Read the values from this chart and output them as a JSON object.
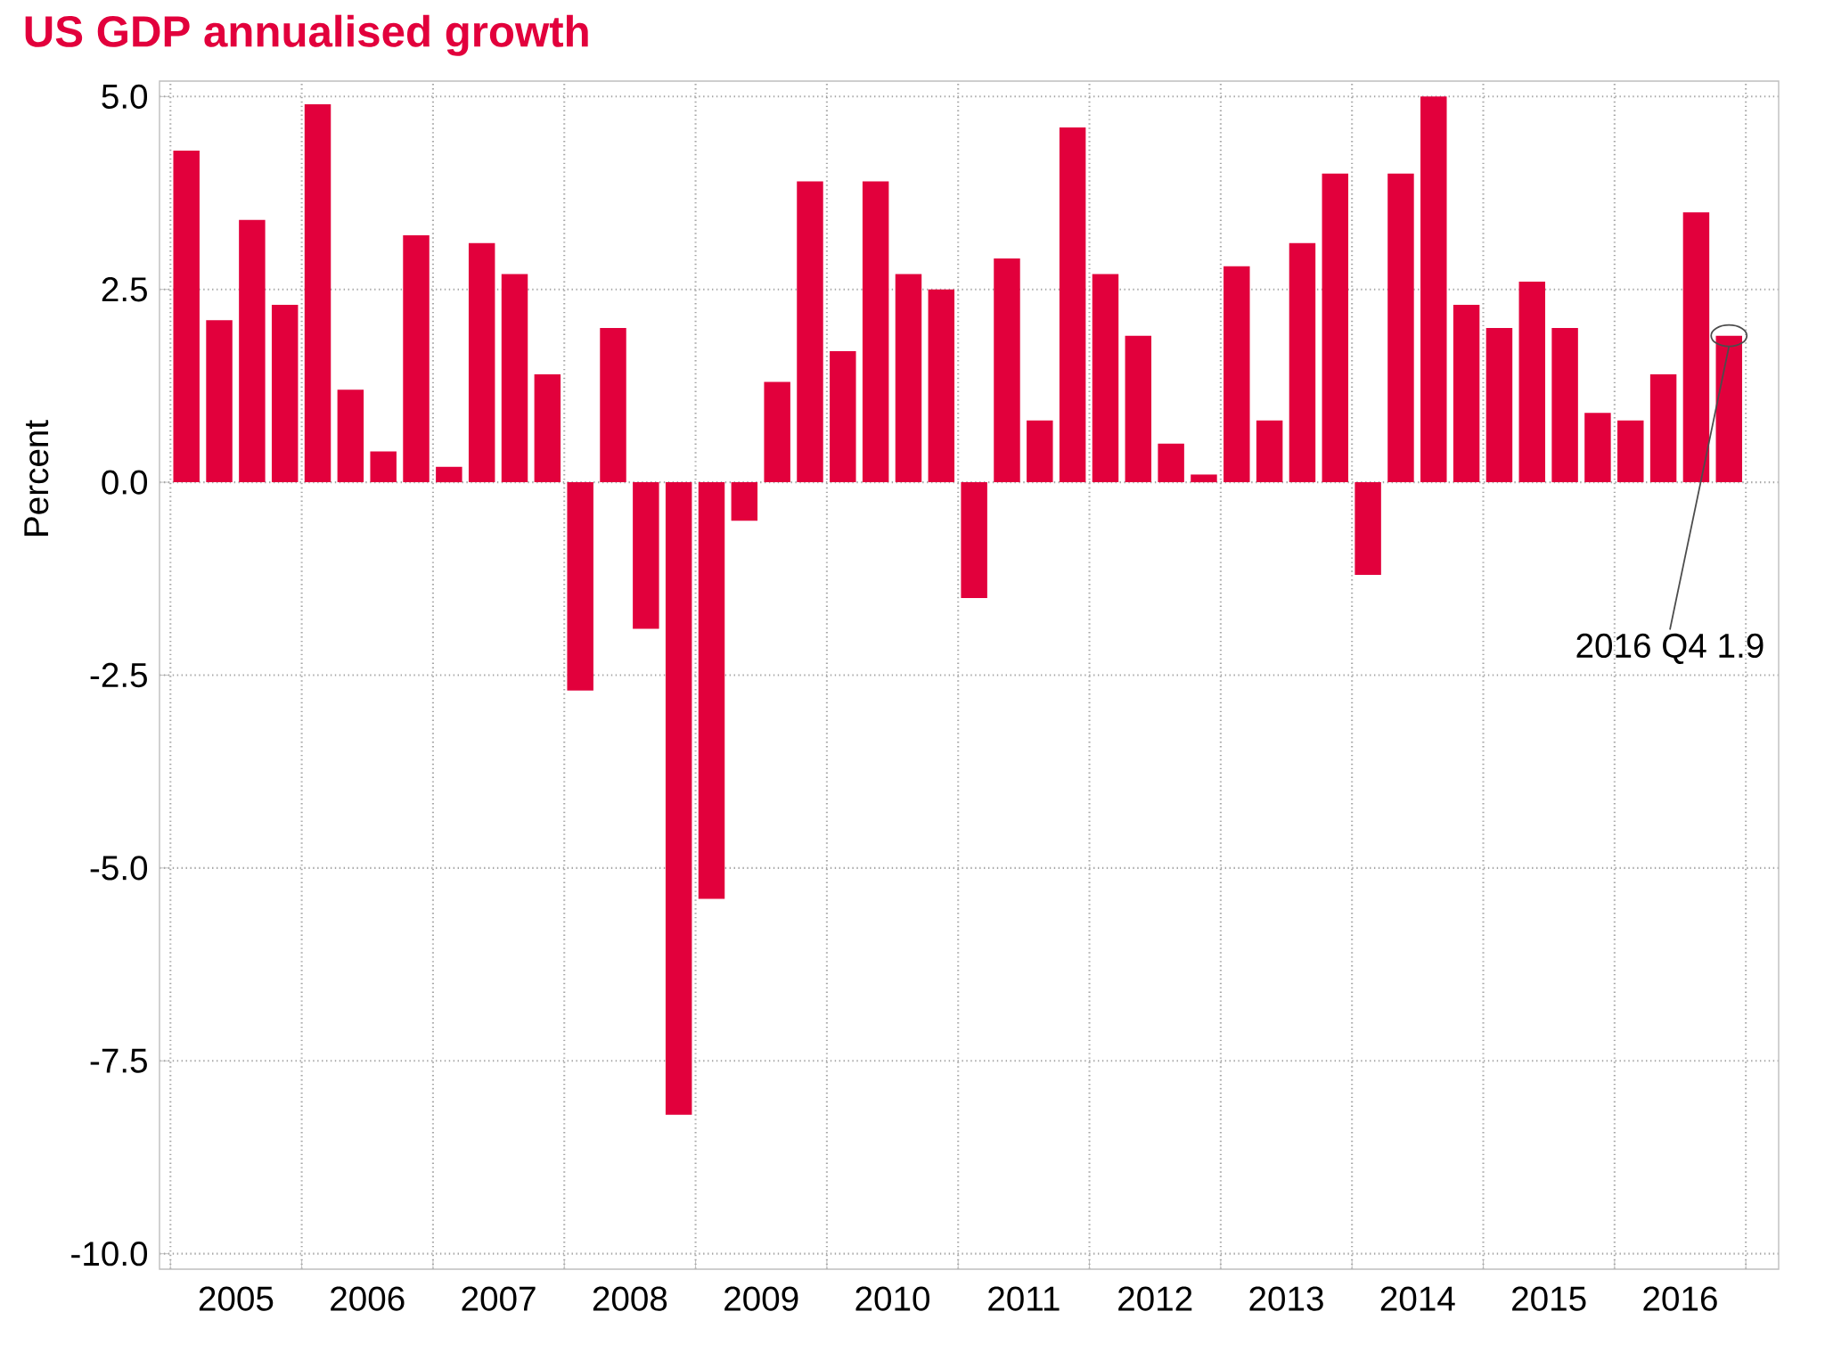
{
  "chart_data": {
    "type": "bar",
    "title": "US GDP annualised growth",
    "ylabel": "Percent",
    "color": "#e2003c",
    "x": [
      "2005-02-15",
      "2005-05-15",
      "2005-08-15",
      "2005-11-15",
      "2006-02-15",
      "2006-05-15",
      "2006-08-15",
      "2006-11-15",
      "2007-02-15",
      "2007-05-15",
      "2007-08-15",
      "2007-11-15",
      "2008-02-15",
      "2008-05-15",
      "2008-08-15",
      "2008-11-15",
      "2009-02-15",
      "2009-05-15",
      "2009-08-15",
      "2009-11-15",
      "2010-02-15",
      "2010-05-15",
      "2010-08-15",
      "2010-11-15",
      "2011-02-15",
      "2011-05-15",
      "2011-08-15",
      "2011-11-15",
      "2012-02-15",
      "2012-05-15",
      "2012-08-15",
      "2012-11-15",
      "2013-02-15",
      "2013-05-15",
      "2013-08-15",
      "2013-11-15",
      "2014-02-15",
      "2014-05-15",
      "2014-08-15",
      "2014-11-15",
      "2015-02-15",
      "2015-05-15",
      "2015-08-15",
      "2015-11-15",
      "2016-02-15",
      "2016-05-15",
      "2016-08-15",
      "2016-11-15"
    ],
    "values": [
      4.3,
      2.1,
      3.4,
      2.3,
      4.9,
      1.2,
      0.4,
      3.2,
      0.2,
      3.1,
      2.7,
      1.4,
      -2.7,
      2.0,
      -1.9,
      -8.2,
      -5.4,
      -0.5,
      1.3,
      3.9,
      1.7,
      3.9,
      2.7,
      2.5,
      -1.5,
      2.9,
      0.8,
      4.6,
      2.7,
      1.9,
      0.5,
      0.1,
      2.8,
      0.8,
      3.1,
      4.0,
      -1.2,
      4.0,
      5.0,
      2.3,
      2.0,
      2.6,
      2.0,
      0.9,
      0.8,
      1.4,
      3.5,
      1.9
    ],
    "xlim": [
      "2004-12",
      "2017-04"
    ],
    "xticks": [
      {
        "value": "2005",
        "label": null
      },
      {
        "value": "2005-07",
        "label": "2005"
      },
      {
        "value": "2006",
        "label": null
      },
      {
        "value": "2006-07",
        "label": "2006"
      },
      {
        "value": "2007",
        "label": null
      },
      {
        "value": "2007-07",
        "label": "2007"
      },
      {
        "value": "2008",
        "label": null
      },
      {
        "value": "2008-07",
        "label": "2008"
      },
      {
        "value": "2009",
        "label": null
      },
      {
        "value": "2009-07",
        "label": "2009"
      },
      {
        "value": "2010",
        "label": null
      },
      {
        "value": "2010-07",
        "label": "2010"
      },
      {
        "value": "2011",
        "label": null
      },
      {
        "value": "2011-07",
        "label": "2011"
      },
      {
        "value": "2012",
        "label": null
      },
      {
        "value": "2012-07",
        "label": "2012"
      },
      {
        "value": "2013",
        "label": null
      },
      {
        "value": "2013-07",
        "label": "2013"
      },
      {
        "value": "2014",
        "label": null
      },
      {
        "value": "2014-07",
        "label": "2014"
      },
      {
        "value": "2015",
        "label": null
      },
      {
        "value": "2015-07",
        "label": "2015"
      },
      {
        "value": "2016",
        "label": null
      },
      {
        "value": "2016-07",
        "label": "2016"
      },
      {
        "value": "2017",
        "label": null
      }
    ],
    "ylim": [
      -10.2,
      5.2
    ],
    "yticks": [
      {
        "value": -10,
        "label": "-10.0"
      },
      {
        "value": -7.5,
        "label": "-7.5"
      },
      {
        "value": -5,
        "label": "-5.0"
      },
      {
        "value": -2.5,
        "label": "-2.5"
      },
      {
        "value": 0,
        "label": "0.0"
      },
      {
        "value": 2.5,
        "label": "2.5"
      },
      {
        "value": 5,
        "label": "5.0"
      }
    ],
    "grid": true,
    "annotations": [
      "2016 Q4 1.9"
    ]
  }
}
